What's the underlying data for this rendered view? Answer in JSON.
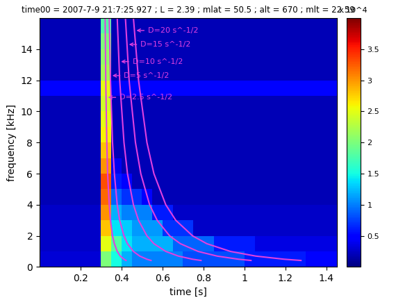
{
  "chart_data": {
    "type": "heatmap",
    "title": "time00 = 2007-7-9 21:7:25.927 ; L = 2.39 ; mlat = 50.5 ; alt = 670 ; mlt = 22.59",
    "x_label": "time [s]",
    "y_label": "frequency [kHz]",
    "xlim": [
      0,
      1.45
    ],
    "ylim": [
      0,
      16
    ],
    "xticks": [
      0.2,
      0.4,
      0.6,
      0.8,
      1,
      1.2,
      1.4
    ],
    "yticks": [
      0,
      2,
      4,
      6,
      8,
      10,
      12,
      14
    ],
    "heatmap": {
      "x_edges": [
        0,
        0.05,
        0.1,
        0.15,
        0.2,
        0.25,
        0.3,
        0.35,
        0.4,
        0.45,
        0.5,
        0.55,
        0.6,
        0.65,
        0.7,
        0.75,
        0.8,
        0.85,
        0.9,
        0.95,
        1.0,
        1.05,
        1.1,
        1.15,
        1.2,
        1.25,
        1.3,
        1.35,
        1.4,
        1.45
      ],
      "y_edges": [
        0,
        1,
        2,
        3,
        4,
        5,
        6,
        7,
        8,
        9,
        10,
        11,
        12,
        13,
        14,
        15,
        16
      ],
      "cells": [
        [
          3000,
          3000,
          3000,
          3000,
          3000,
          3000,
          20000,
          15000,
          12000,
          10000,
          10000,
          10000,
          10000,
          10000,
          8000,
          8000,
          8000,
          8000,
          8000,
          8000,
          6000,
          6000,
          6000,
          6000,
          6000,
          6000,
          5000,
          5000,
          5000
        ],
        [
          2500,
          2500,
          2500,
          2500,
          2500,
          2500,
          25000,
          18000,
          14000,
          12000,
          12000,
          12000,
          12000,
          9000,
          9000,
          9000,
          9000,
          6000,
          6000,
          6000,
          6000,
          3500,
          3500,
          3500,
          3500,
          3500,
          3500,
          3500,
          3500
        ],
        [
          2500,
          2500,
          2500,
          2500,
          2500,
          2500,
          28000,
          14000,
          13000,
          11000,
          11000,
          11000,
          7000,
          7000,
          7000,
          2500,
          2500,
          2500,
          2500,
          2500,
          2500,
          2500,
          2500,
          2500,
          2500,
          2500,
          2500,
          2500,
          2500
        ],
        [
          2500,
          2500,
          2500,
          2500,
          2500,
          2500,
          30000,
          12000,
          10000,
          10000,
          10000,
          6000,
          6000,
          2500,
          2500,
          2500,
          2500,
          2500,
          2500,
          2500,
          2500,
          2500,
          2500,
          2500,
          2500,
          2500,
          2500,
          2500,
          2500
        ],
        [
          2000,
          2000,
          2000,
          2000,
          2000,
          2000,
          32000,
          9000,
          7000,
          7000,
          5000,
          2000,
          2000,
          2000,
          2000,
          2000,
          2000,
          2000,
          2000,
          2000,
          2000,
          2000,
          2000,
          2000,
          2000,
          2000,
          2000,
          2000,
          2000
        ],
        [
          2000,
          2000,
          2000,
          2000,
          2000,
          2000,
          33000,
          6000,
          5000,
          2000,
          2000,
          2000,
          2000,
          2000,
          2000,
          2000,
          2000,
          2000,
          2000,
          2000,
          2000,
          2000,
          2000,
          2000,
          2000,
          2000,
          2000,
          2000,
          2000
        ],
        [
          2000,
          2000,
          2000,
          2000,
          2000,
          2000,
          30000,
          4000,
          2000,
          2000,
          2000,
          2000,
          2000,
          2000,
          2000,
          2000,
          2000,
          2000,
          2000,
          2000,
          2000,
          2000,
          2000,
          2000,
          2000,
          2000,
          2000,
          2000,
          2000
        ],
        [
          2000,
          2000,
          2000,
          2000,
          2000,
          2000,
          28000,
          2000,
          2000,
          2000,
          2000,
          2000,
          2000,
          2000,
          2000,
          2000,
          2000,
          2000,
          2000,
          2000,
          2000,
          2000,
          2000,
          2000,
          2000,
          2000,
          2000,
          2000,
          2000
        ],
        [
          2000,
          2000,
          2000,
          2000,
          2000,
          2000,
          26000,
          2000,
          2000,
          2000,
          2000,
          2000,
          2000,
          2000,
          2000,
          2000,
          2000,
          2000,
          2000,
          2000,
          2000,
          2000,
          2000,
          2000,
          2000,
          2000,
          2000,
          2000,
          2000
        ],
        [
          2000,
          2000,
          2000,
          2000,
          2000,
          2000,
          25000,
          2000,
          2000,
          2000,
          2000,
          2000,
          2000,
          2000,
          2000,
          2000,
          2000,
          2000,
          2000,
          2000,
          2000,
          2000,
          2000,
          2000,
          2000,
          2000,
          2000,
          2000,
          2000
        ],
        [
          2000,
          2000,
          2000,
          2000,
          2000,
          2000,
          24000,
          2000,
          2000,
          2000,
          2000,
          2000,
          2000,
          2000,
          2000,
          2000,
          2000,
          2000,
          2000,
          2000,
          2000,
          2000,
          2000,
          2000,
          2000,
          2000,
          2000,
          2000,
          2000
        ],
        [
          5000,
          5000,
          5000,
          5000,
          5000,
          5000,
          25000,
          5000,
          5000,
          5000,
          5000,
          5000,
          5000,
          5000,
          5000,
          5000,
          5000,
          5000,
          5000,
          5000,
          5000,
          5000,
          5000,
          5000,
          5000,
          5000,
          5000,
          5000,
          5000
        ],
        [
          2000,
          2000,
          2000,
          2000,
          2000,
          2000,
          22000,
          2000,
          2000,
          2000,
          2000,
          2000,
          2000,
          2000,
          2000,
          2000,
          2000,
          2000,
          2000,
          2000,
          2000,
          2000,
          2000,
          2000,
          2000,
          2000,
          2000,
          2000,
          2000
        ],
        [
          2000,
          2000,
          2000,
          2000,
          2000,
          2000,
          21000,
          2000,
          2000,
          2000,
          2000,
          2000,
          2000,
          2000,
          2000,
          2000,
          2000,
          2000,
          2000,
          2000,
          2000,
          2000,
          2000,
          2000,
          2000,
          2000,
          2000,
          2000,
          2000
        ],
        [
          2000,
          2000,
          2000,
          2000,
          2000,
          2000,
          20000,
          2000,
          2000,
          2000,
          2000,
          2000,
          2000,
          2000,
          2000,
          2000,
          2000,
          2000,
          2000,
          2000,
          2000,
          2000,
          2000,
          2000,
          2000,
          2000,
          2000,
          2000,
          2000
        ],
        [
          2000,
          2000,
          2000,
          2000,
          2000,
          2000,
          18000,
          2000,
          2000,
          2000,
          2000,
          2000,
          2000,
          2000,
          2000,
          2000,
          2000,
          2000,
          2000,
          2000,
          2000,
          2000,
          2000,
          2000,
          2000,
          2000,
          2000,
          2000,
          2000
        ]
      ],
      "colorbar": {
        "range": [
          0,
          40000
        ],
        "ticks": [
          {
            "value": 5000,
            "label": "0.5"
          },
          {
            "value": 10000,
            "label": "1"
          },
          {
            "value": 15000,
            "label": "1.5"
          },
          {
            "value": 20000,
            "label": "2"
          },
          {
            "value": 25000,
            "label": "2.5"
          },
          {
            "value": 30000,
            "label": "3"
          },
          {
            "value": 35000,
            "label": "3.5"
          }
        ],
        "multiplier": "x 10^4"
      }
    },
    "series": [
      {
        "name": "D=2.5 s^-1/2",
        "color": "#e040e0",
        "x": [
          0.32,
          0.323,
          0.328,
          0.332,
          0.34,
          0.346,
          0.356,
          0.365,
          0.379,
          0.394,
          0.412,
          0.422
        ],
        "y": [
          16,
          12,
          8,
          6,
          4,
          3,
          2,
          1.5,
          1,
          0.7,
          0.5,
          0.42
        ]
      },
      {
        "name": "D=5 s^-1/2",
        "color": "#e040e0",
        "x": [
          0.34,
          0.346,
          0.356,
          0.365,
          0.379,
          0.391,
          0.412,
          0.429,
          0.458,
          0.489,
          0.524,
          0.544
        ],
        "y": [
          16,
          12,
          8,
          6,
          4,
          3,
          2,
          1.5,
          1,
          0.7,
          0.5,
          0.42
        ]
      },
      {
        "name": "D=10 s^-1/2",
        "color": "#e040e0",
        "x": [
          0.379,
          0.391,
          0.412,
          0.429,
          0.458,
          0.483,
          0.524,
          0.558,
          0.616,
          0.678,
          0.747,
          0.788
        ],
        "y": [
          16,
          12,
          8,
          6,
          4,
          3,
          2,
          1.5,
          1,
          0.7,
          0.5,
          0.42
        ]
      },
      {
        "name": "D=15 s^-1/2",
        "color": "#e040e0",
        "x": [
          0.419,
          0.437,
          0.468,
          0.494,
          0.537,
          0.574,
          0.635,
          0.687,
          0.774,
          0.867,
          0.971,
          1.032
        ],
        "y": [
          16,
          12,
          8,
          6,
          4,
          3,
          2,
          1.5,
          1,
          0.7,
          0.5,
          0.42
        ]
      },
      {
        "name": "D=20 s^-1/2",
        "color": "#e040e0",
        "x": [
          0.458,
          0.483,
          0.524,
          0.558,
          0.616,
          0.665,
          0.747,
          0.816,
          0.932,
          1.056,
          1.194,
          1.276
        ],
        "y": [
          16,
          12,
          8,
          6,
          4,
          3,
          2,
          1.5,
          1,
          0.7,
          0.5,
          0.42
        ]
      }
    ]
  }
}
